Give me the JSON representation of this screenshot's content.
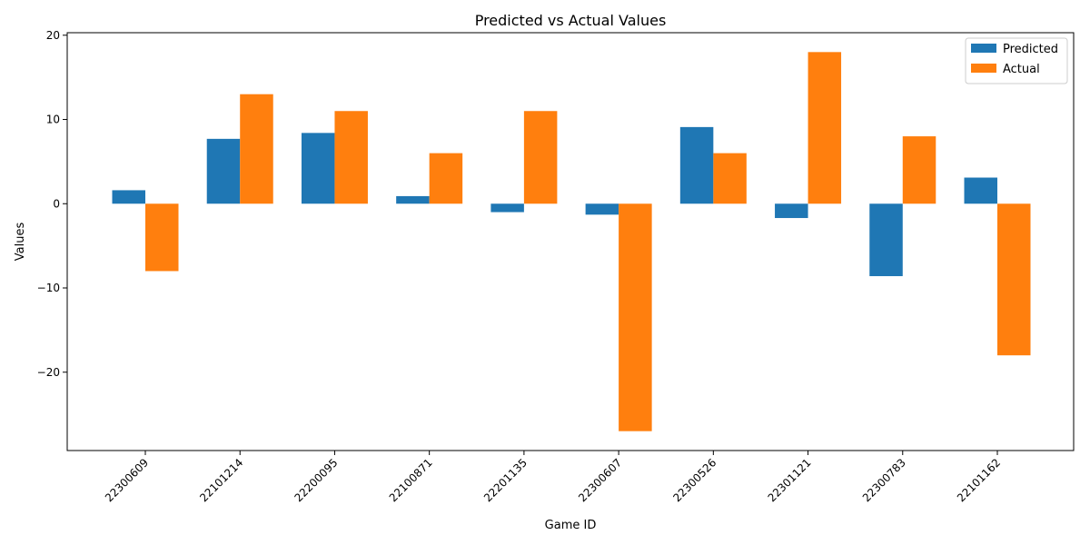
{
  "chart_data": {
    "type": "bar",
    "title": "Predicted vs Actual Values",
    "xlabel": "Game ID",
    "ylabel": "Values",
    "categories": [
      "22300609",
      "22101214",
      "22200095",
      "22100871",
      "22201135",
      "22300607",
      "22300526",
      "22301121",
      "22300783",
      "22101162"
    ],
    "series": [
      {
        "name": "Predicted",
        "color": "#1f77b4",
        "values": [
          1.6,
          7.7,
          8.4,
          0.9,
          -1.0,
          -1.3,
          9.1,
          -1.7,
          -8.6,
          3.1
        ]
      },
      {
        "name": "Actual",
        "color": "#ff7f0e",
        "values": [
          -8,
          13,
          11,
          6,
          11,
          -27,
          6,
          18,
          8,
          -18
        ]
      }
    ],
    "ylim": [
      -29.3,
      20.3
    ],
    "yticks": [
      20,
      10,
      0,
      -10,
      -20
    ],
    "ytick_labels": [
      "20",
      "10",
      "0",
      "−10",
      "−20"
    ],
    "legend_position": "top-right",
    "grid": false
  }
}
